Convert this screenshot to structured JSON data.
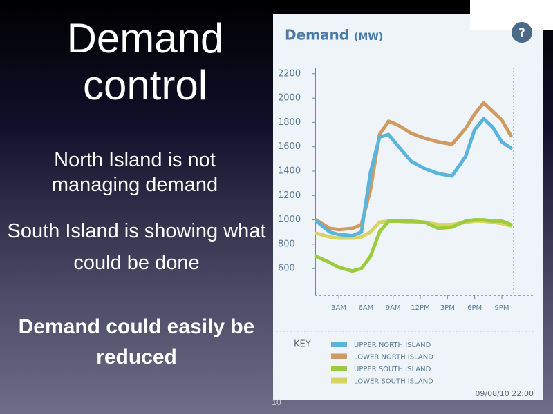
{
  "slide": {
    "title": "Demand control",
    "points": [
      "North Island is not managing demand",
      "South Island is showing what could be done"
    ],
    "conclusion": "Demand could easily be reduced",
    "page_number": "10"
  },
  "chart_data": {
    "type": "line",
    "title": "Demand",
    "unit": "(MW)",
    "help": "?",
    "x": [
      0.5,
      2,
      3,
      4.5,
      5.5,
      6.5,
      7.5,
      8.5,
      9.5,
      11,
      12.5,
      14,
      15.5,
      17,
      18,
      19,
      20,
      21,
      22
    ],
    "xlim": [
      0.4,
      22.3
    ],
    "xticks": [
      {
        "value": 3,
        "label": "3AM"
      },
      {
        "value": 6,
        "label": "6AM"
      },
      {
        "value": 9,
        "label": "9AM"
      },
      {
        "value": 12,
        "label": "12PM"
      },
      {
        "value": 15,
        "label": "3PM"
      },
      {
        "value": 18,
        "label": "6PM"
      },
      {
        "value": 21,
        "label": "9PM"
      }
    ],
    "ylim": [
      380,
      2250
    ],
    "yticks": [
      600,
      800,
      1000,
      1200,
      1400,
      1600,
      1800,
      2000,
      2200
    ],
    "legend_title": "KEY",
    "legend": "bottom",
    "timestamp": "09/08/10 22:00",
    "series": [
      {
        "name": "UPPER NORTH ISLAND",
        "color": "#5ab4dc",
        "values": [
          990,
          900,
          880,
          870,
          900,
          1390,
          1680,
          1700,
          1610,
          1480,
          1420,
          1380,
          1360,
          1520,
          1740,
          1830,
          1760,
          1640,
          1590
        ]
      },
      {
        "name": "LOWER NORTH ISLAND",
        "color": "#d09a63",
        "values": [
          1000,
          930,
          920,
          930,
          960,
          1250,
          1700,
          1810,
          1780,
          1710,
          1670,
          1640,
          1620,
          1750,
          1870,
          1960,
          1890,
          1820,
          1690
        ]
      },
      {
        "name": "UPPER SOUTH ISLAND",
        "color": "#9ccc3c",
        "values": [
          700,
          650,
          610,
          580,
          600,
          700,
          900,
          990,
          990,
          990,
          980,
          930,
          940,
          990,
          1000,
          1000,
          990,
          990,
          960
        ]
      },
      {
        "name": "LOWER SOUTH ISLAND",
        "color": "#d8d460",
        "values": [
          890,
          860,
          850,
          850,
          860,
          900,
          980,
          990,
          990,
          980,
          980,
          960,
          960,
          980,
          990,
          990,
          980,
          970,
          950
        ]
      }
    ]
  }
}
